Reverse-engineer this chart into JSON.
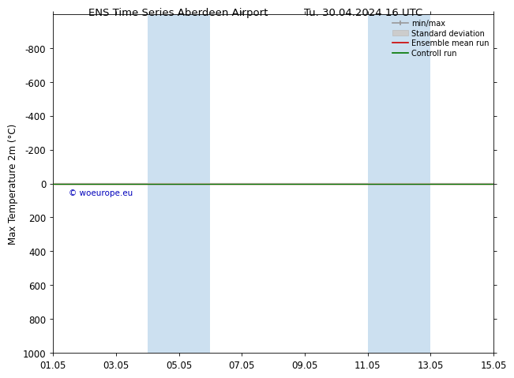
{
  "title_left": "ENS Time Series Aberdeen Airport",
  "title_right": "Tu. 30.04.2024 16 UTC",
  "ylabel": "Max Temperature 2m (°C)",
  "ylim_bottom": -1000,
  "ylim_top": 1000,
  "yticks": [
    -800,
    -600,
    -400,
    -200,
    0,
    200,
    400,
    600,
    800,
    1000
  ],
  "xtick_labels": [
    "01.05",
    "03.05",
    "05.05",
    "07.05",
    "09.05",
    "11.05",
    "13.05",
    "15.05"
  ],
  "xtick_positions": [
    0,
    2,
    4,
    6,
    8,
    10,
    12,
    14
  ],
  "x_min": 0,
  "x_max": 14,
  "shaded_regions": [
    {
      "x_start": 3.0,
      "x_end": 5.0
    },
    {
      "x_start": 10.0,
      "x_end": 12.0
    }
  ],
  "shade_color": "#cce0f0",
  "green_line_color": "#007700",
  "red_line_color": "#cc0000",
  "minmax_color": "#999999",
  "stddev_color": "#cccccc",
  "stddev_edge_color": "#bbbbbb",
  "watermark": "© woeurope.eu",
  "watermark_color": "#0000bb",
  "bg_color": "#ffffff",
  "font_size": 8.5,
  "title_font_size": 9.5,
  "legend_labels": [
    "min/max",
    "Standard deviation",
    "Ensemble mean run",
    "Controll run"
  ]
}
